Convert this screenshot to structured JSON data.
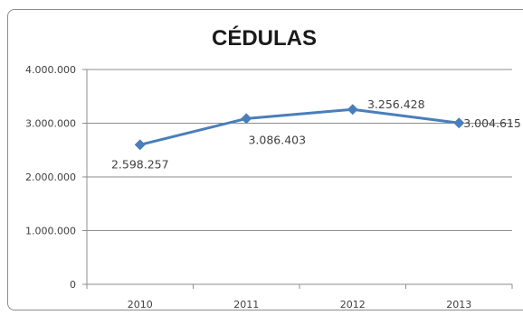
{
  "chart_data": {
    "type": "line",
    "title": "CÉDULAS",
    "xlabel": "",
    "ylabel": "",
    "categories": [
      "2010",
      "2011",
      "2012",
      "2013"
    ],
    "series": [
      {
        "values": [
          2598257,
          3086403,
          3256428,
          3004615
        ],
        "labels": [
          "2.598.257",
          "3.086.403",
          "3.256.428",
          "3.004.615"
        ],
        "color": "#4a7ebb"
      }
    ],
    "ylim": [
      0,
      4000000
    ],
    "yticks": [
      0,
      1000000,
      2000000,
      3000000,
      4000000
    ],
    "ytick_labels": [
      "0",
      "1.000.000",
      "2.000.000",
      "3.000.000",
      "4.000.000"
    ],
    "grid": true,
    "gridline_color": "#8c8c8c",
    "legend": "none"
  }
}
